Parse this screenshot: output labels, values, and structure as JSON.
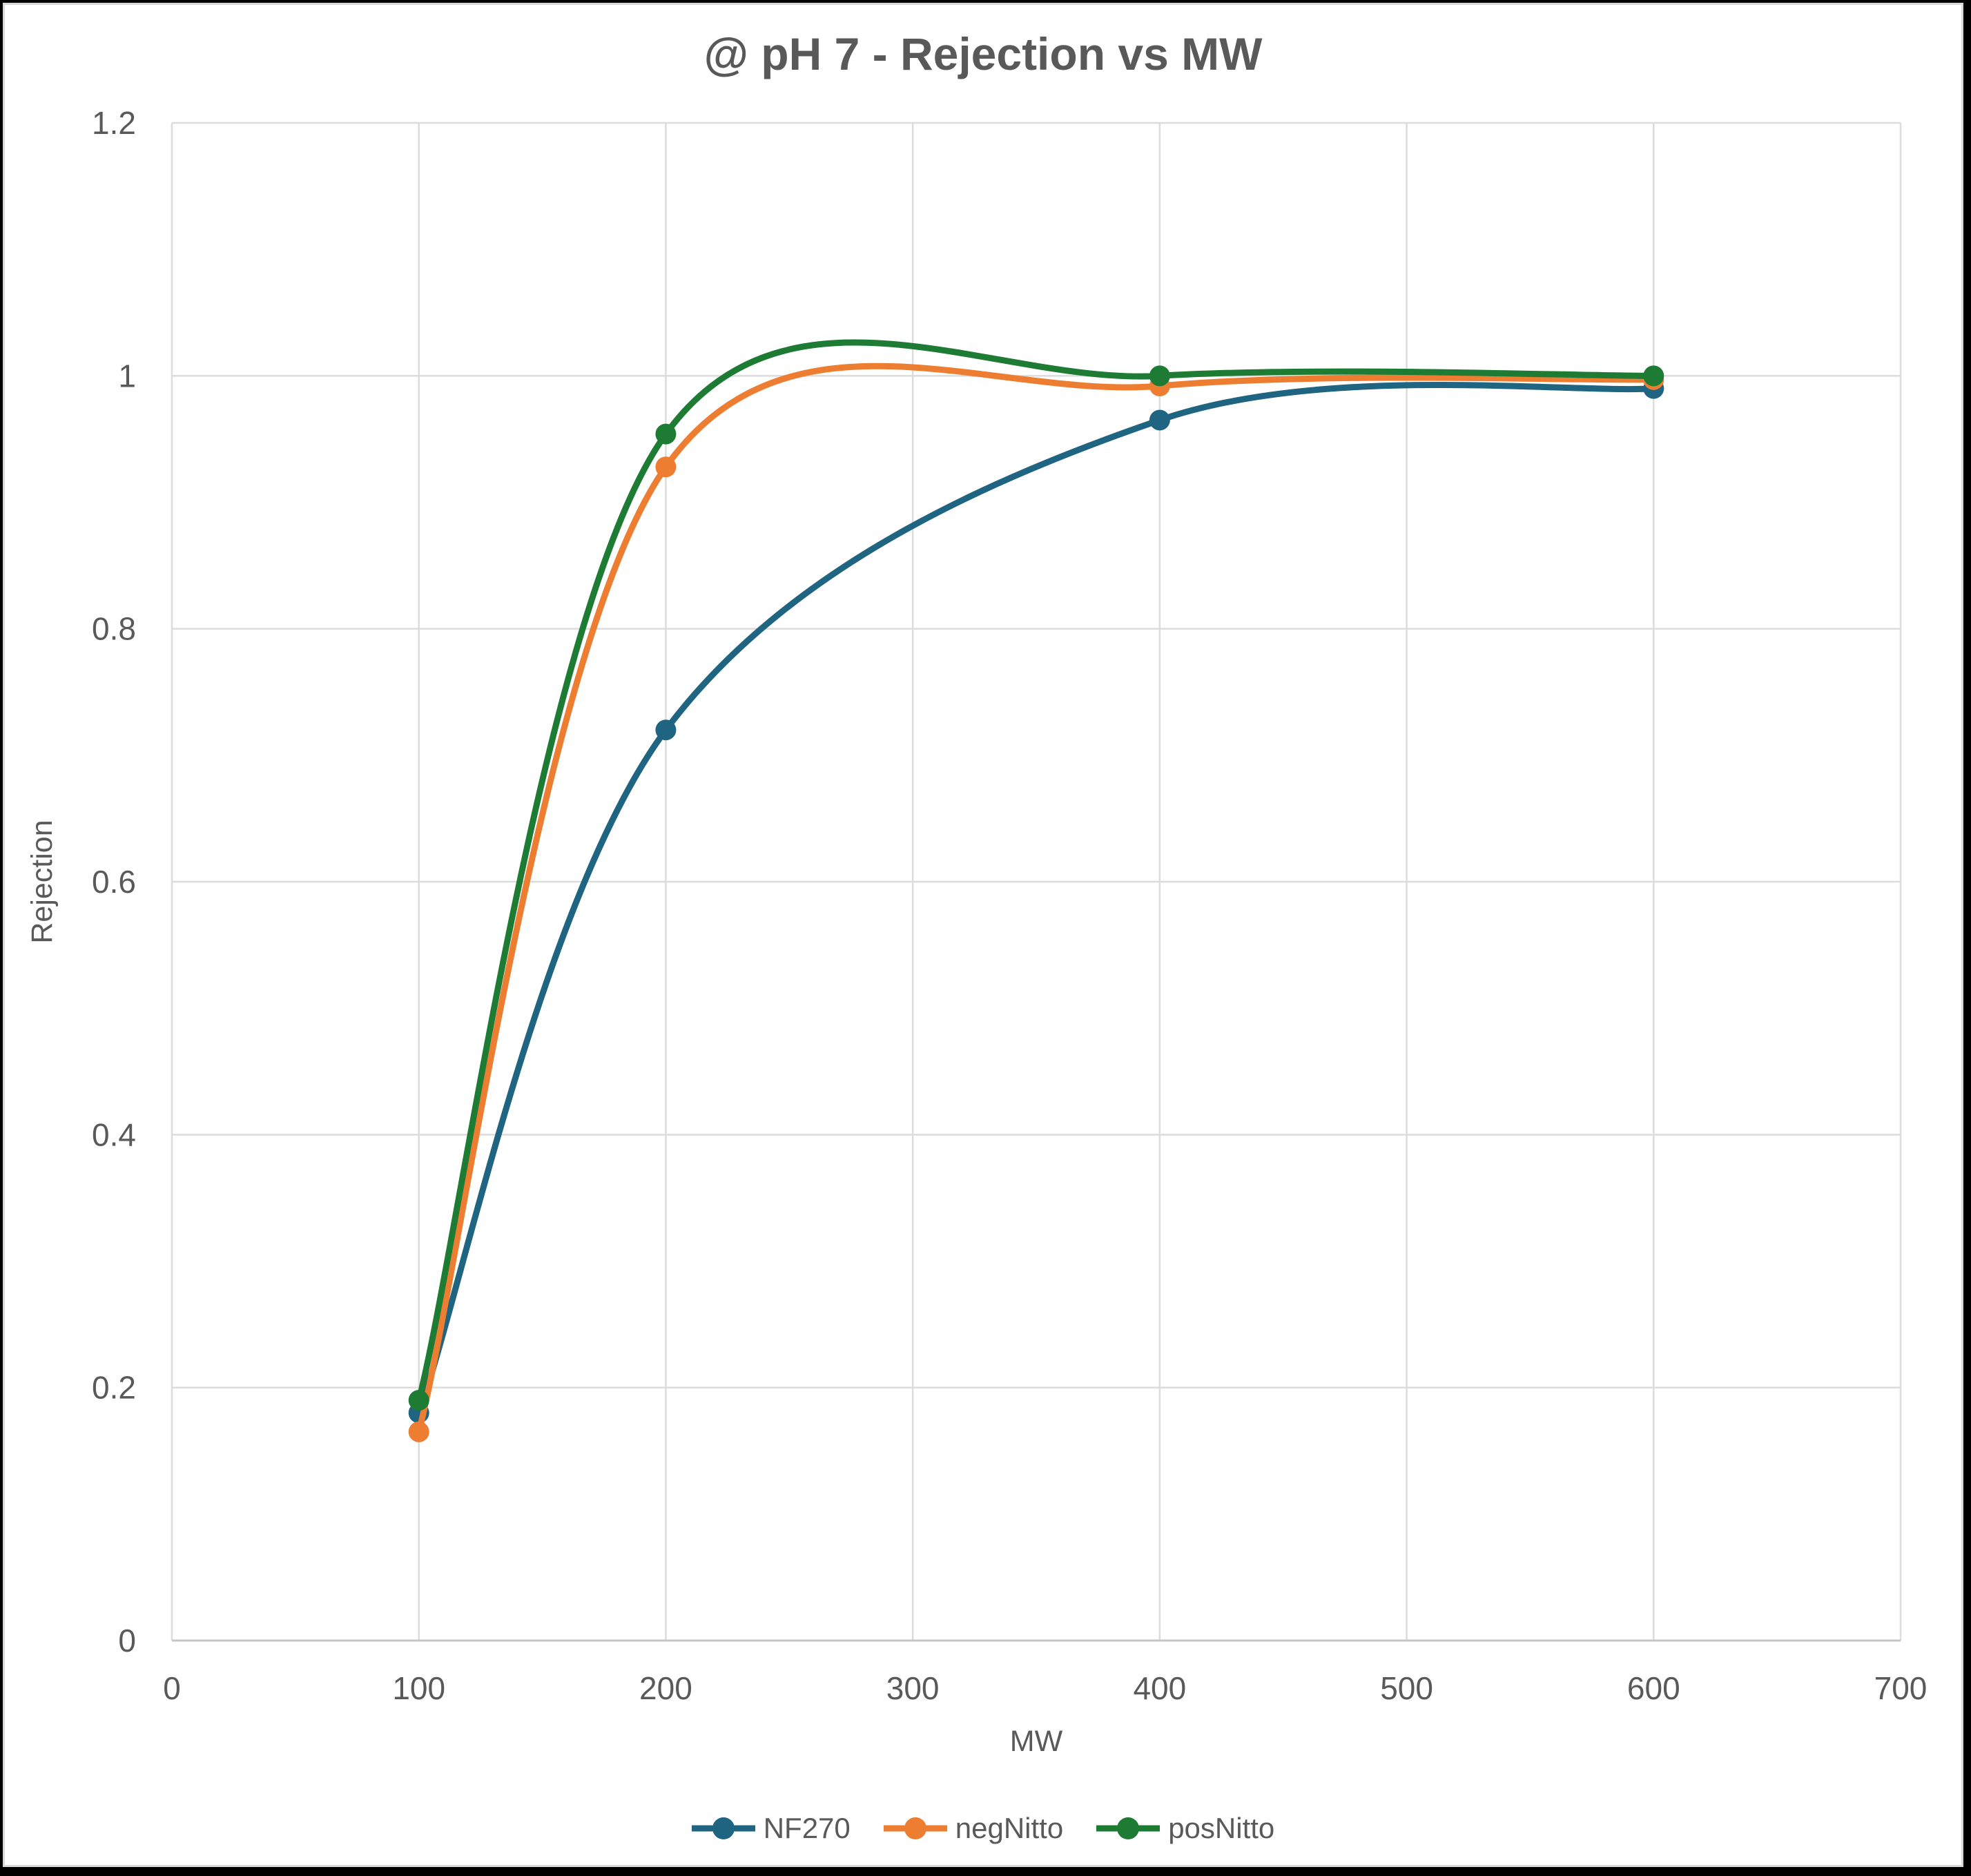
{
  "frame": {
    "page_background": "#000000",
    "card_background": "#FFFFFF",
    "card_border_color": "#D9D9D9"
  },
  "chart_data": {
    "type": "line",
    "title": "@ pH 7 - Rejection vs MW",
    "xlabel": "MW",
    "ylabel": "Rejection",
    "xlim": [
      0,
      700
    ],
    "ylim": [
      0,
      1.2
    ],
    "xticks": {
      "values": [
        0,
        100,
        200,
        300,
        400,
        500,
        600,
        700
      ],
      "labels": [
        "0",
        "100",
        "200",
        "300",
        "400",
        "500",
        "600",
        "700"
      ]
    },
    "yticks": {
      "values": [
        0,
        0.2,
        0.4,
        0.6,
        0.8,
        1,
        1.2
      ],
      "labels": [
        "0",
        "0.2",
        "0.4",
        "0.6",
        "0.8",
        "1",
        "1.2"
      ]
    },
    "grid": true,
    "smooth_lines": true,
    "markers": true,
    "legend_position": "bottom",
    "x": [
      100,
      200,
      400,
      600
    ],
    "series": [
      {
        "name": "NF270",
        "color": "#1F6480",
        "values": [
          0.18,
          0.72,
          0.965,
          0.99
        ]
      },
      {
        "name": "negNitto",
        "color": "#ED7D31",
        "values": [
          0.165,
          0.928,
          0.992,
          0.997
        ]
      },
      {
        "name": "posNitto",
        "color": "#1E7B34",
        "values": [
          0.19,
          0.954,
          1.0,
          1.0
        ]
      }
    ],
    "styles": {
      "grid_color": "#DCDCDC",
      "axis_line_color": "#C6C6C6",
      "text_color": "#595959"
    }
  }
}
